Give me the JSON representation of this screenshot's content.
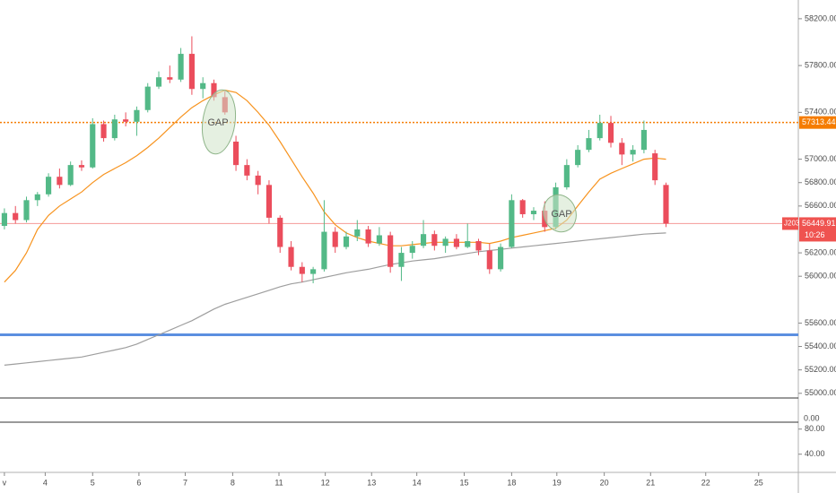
{
  "chart_data": {
    "type": "candlestick",
    "up_color": "#53b987",
    "down_color": "#eb4d5c",
    "xlim": [
      -0.4,
      72
    ],
    "ylim": [
      54960,
      58360
    ],
    "yticks": [
      {
        "value": 58200,
        "label": "58200.00"
      },
      {
        "value": 57800,
        "label": "57800.00"
      },
      {
        "value": 57400,
        "label": "57400.00"
      },
      {
        "value": 57000,
        "label": "57000.00"
      },
      {
        "value": 56800,
        "label": "56800.00"
      },
      {
        "value": 56600,
        "label": "56600.00"
      },
      {
        "value": 56200,
        "label": "56200.00"
      },
      {
        "value": 56000,
        "label": "56000.00"
      },
      {
        "value": 55600,
        "label": "55600.00"
      },
      {
        "value": 55400,
        "label": "55400.00"
      },
      {
        "value": 55200,
        "label": "55200.00"
      },
      {
        "value": 55000,
        "label": "55000.00"
      }
    ],
    "xticks": [
      {
        "value": 0,
        "label": "v"
      },
      {
        "value": 3.7,
        "label": "4"
      },
      {
        "value": 8,
        "label": "5"
      },
      {
        "value": 12.2,
        "label": "6"
      },
      {
        "value": 16.4,
        "label": "7"
      },
      {
        "value": 20.7,
        "label": "8"
      },
      {
        "value": 24.9,
        "label": "11"
      },
      {
        "value": 29.1,
        "label": "12"
      },
      {
        "value": 33.3,
        "label": "13"
      },
      {
        "value": 37.4,
        "label": "14"
      },
      {
        "value": 41.7,
        "label": "15"
      },
      {
        "value": 46,
        "label": "18"
      },
      {
        "value": 50.1,
        "label": "19"
      },
      {
        "value": 54.4,
        "label": "20"
      },
      {
        "value": 58.6,
        "label": "21"
      },
      {
        "value": 63.6,
        "label": "22"
      },
      {
        "value": 68.4,
        "label": "25"
      }
    ],
    "open": [
      56430,
      56540,
      56480,
      56650,
      56700,
      56850,
      56780,
      56950,
      56930,
      57300,
      57180,
      57340,
      57320,
      57420,
      57620,
      57700,
      57680,
      57900,
      57600,
      57650,
      57530,
      57150,
      56950,
      56860,
      56780,
      56500,
      56250,
      56080,
      56020,
      56060,
      56380,
      56250,
      56340,
      56400,
      56280,
      56350,
      56080,
      56200,
      56260,
      56360,
      56260,
      56320,
      56250,
      56300,
      56220,
      56060,
      56250,
      56650,
      56530,
      56560,
      56420,
      56760,
      56950,
      57080,
      57180,
      57310,
      57140,
      57040,
      57080,
      57050,
      56780
    ],
    "high": [
      56580,
      56600,
      56680,
      56720,
      56880,
      56920,
      56980,
      56990,
      57350,
      57330,
      57380,
      57400,
      57450,
      57650,
      57750,
      57800,
      57950,
      58050,
      57700,
      57680,
      57580,
      57200,
      57000,
      56900,
      56820,
      56520,
      56300,
      56120,
      56080,
      56650,
      56420,
      56380,
      56480,
      56430,
      56420,
      56380,
      56250,
      56300,
      56480,
      56390,
      56340,
      56360,
      56450,
      56320,
      56280,
      56280,
      56700,
      56660,
      56590,
      56640,
      56800,
      57000,
      57120,
      57250,
      57380,
      57370,
      57180,
      57120,
      57330,
      57080,
      56800
    ],
    "low": [
      56400,
      56450,
      56460,
      56600,
      56680,
      56750,
      56770,
      56900,
      56920,
      57150,
      57160,
      57280,
      57200,
      57400,
      57600,
      57650,
      57660,
      57550,
      57520,
      57500,
      57380,
      56900,
      56820,
      56700,
      56450,
      56200,
      56050,
      55950,
      55940,
      56040,
      56200,
      56230,
      56300,
      56250,
      56260,
      56030,
      55960,
      56150,
      56240,
      56220,
      56200,
      56230,
      56240,
      56180,
      56020,
      56040,
      56240,
      56500,
      56480,
      56380,
      56400,
      56740,
      56930,
      57060,
      57160,
      57100,
      56950,
      56980,
      57050,
      56780,
      56420
    ],
    "close": [
      56540,
      56480,
      56650,
      56700,
      56850,
      56780,
      56950,
      56930,
      57300,
      57180,
      57340,
      57320,
      57420,
      57620,
      57700,
      57680,
      57900,
      57600,
      57650,
      57530,
      57400,
      56950,
      56860,
      56780,
      56500,
      56250,
      56080,
      56020,
      56060,
      56380,
      56250,
      56340,
      56400,
      56280,
      56350,
      56080,
      56200,
      56260,
      56360,
      56260,
      56320,
      56250,
      56300,
      56220,
      56060,
      56250,
      56650,
      56530,
      56560,
      56420,
      56760,
      56950,
      57080,
      57180,
      57310,
      57140,
      57040,
      57080,
      57250,
      56820,
      56450
    ],
    "series": [
      {
        "color": "#f7931e",
        "values": [
          55950,
          56050,
          56200,
          56400,
          56520,
          56600,
          56660,
          56720,
          56800,
          56870,
          56920,
          56970,
          57030,
          57100,
          57180,
          57270,
          57360,
          57440,
          57500,
          57550,
          57590,
          57570,
          57500,
          57400,
          57290,
          57150,
          57000,
          56850,
          56710,
          56550,
          56440,
          56370,
          56330,
          56300,
          56280,
          56260,
          56260,
          56270,
          56280,
          56290,
          56290,
          56290,
          56290,
          56290,
          56280,
          56300,
          56330,
          56350,
          56370,
          56390,
          56410,
          56480,
          56600,
          56720,
          56830,
          56880,
          56920,
          56960,
          57000,
          57010,
          57000
        ]
      },
      {
        "color": "#9e9e9e",
        "values": [
          55240,
          55250,
          55260,
          55270,
          55280,
          55290,
          55300,
          55310,
          55330,
          55350,
          55370,
          55390,
          55420,
          55460,
          55500,
          55540,
          55580,
          55620,
          55670,
          55720,
          55760,
          55790,
          55820,
          55850,
          55880,
          55910,
          55935,
          55950,
          55970,
          55990,
          56010,
          56030,
          56045,
          56060,
          56080,
          56100,
          56115,
          56130,
          56140,
          56150,
          56165,
          56180,
          56195,
          56210,
          56220,
          56230,
          56240,
          56250,
          56260,
          56270,
          56280,
          56290,
          56300,
          56310,
          56320,
          56330,
          56340,
          56350,
          56360,
          56365,
          56370
        ]
      }
    ],
    "levels": [
      {
        "value": 57313.44,
        "label": "57313.44",
        "color": "#f57c00",
        "style": "dotted"
      },
      {
        "value": 55500,
        "color": "#5b8fe0",
        "style": "solid"
      }
    ],
    "last_price": {
      "value": 56449.91,
      "label": "56449.91",
      "countdown": "10:26",
      "symbol": "J203",
      "color": "#ef5350"
    },
    "annotations": [
      "GAP",
      "GAP"
    ],
    "middle_pane": {
      "ytick": {
        "value": 0,
        "label": "0.00"
      }
    },
    "indicator_pane": {
      "ylim": [
        11,
        91
      ],
      "yticks": [
        {
          "value": 80,
          "label": "80.00"
        },
        {
          "value": 40,
          "label": "40.00"
        }
      ]
    }
  }
}
